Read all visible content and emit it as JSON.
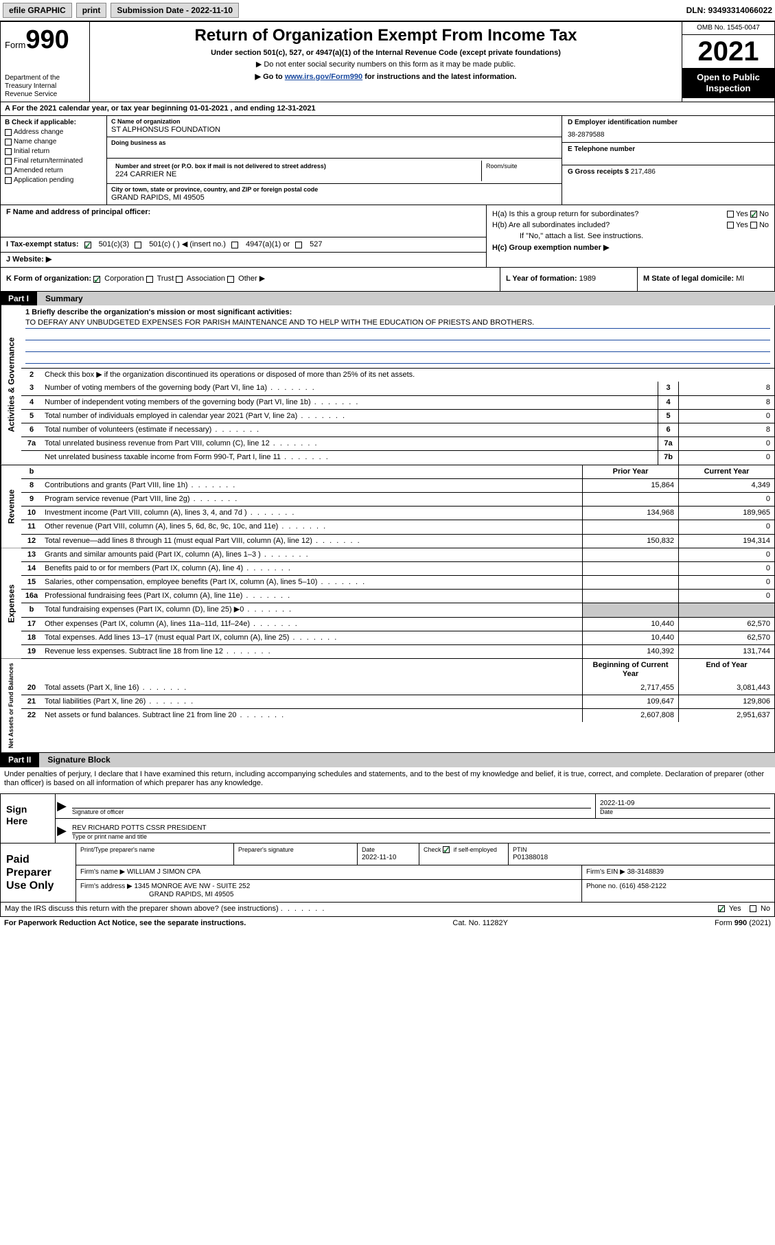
{
  "topbar": {
    "efile": "efile GRAPHIC",
    "print": "print",
    "sub_date_label": "Submission Date - 2022-11-10",
    "dln": "DLN: 93493314066022"
  },
  "header": {
    "form_word": "Form",
    "form_num": "990",
    "dept": "Department of the Treasury Internal Revenue Service",
    "title": "Return of Organization Exempt From Income Tax",
    "sub": "Under section 501(c), 527, or 4947(a)(1) of the Internal Revenue Code (except private foundations)",
    "note1": "▶ Do not enter social security numbers on this form as it may be made public.",
    "note2_pre": "▶ Go to ",
    "note2_link": "www.irs.gov/Form990",
    "note2_post": " for instructions and the latest information.",
    "omb": "OMB No. 1545-0047",
    "year": "2021",
    "open_pub": "Open to Public Inspection"
  },
  "row_a": "For the 2021 calendar year, or tax year beginning 01-01-2021   , and ending 12-31-2021",
  "b": {
    "title": "B Check if applicable:",
    "items": [
      "Address change",
      "Name change",
      "Initial return",
      "Final return/terminated",
      "Amended return",
      "Application pending"
    ]
  },
  "c": {
    "name_label": "C Name of organization",
    "name": "ST ALPHONSUS FOUNDATION",
    "dba_label": "Doing business as",
    "street_label": "Number and street (or P.O. box if mail is not delivered to street address)",
    "street": "224 CARRIER NE",
    "room_label": "Room/suite",
    "city_label": "City or town, state or province, country, and ZIP or foreign postal code",
    "city": "GRAND RAPIDS, MI  49505"
  },
  "d": {
    "label": "D Employer identification number",
    "val": "38-2879588"
  },
  "e": {
    "label": "E Telephone number",
    "val": ""
  },
  "g": {
    "label": "G Gross receipts $",
    "val": "217,486"
  },
  "f": {
    "label": "F  Name and address of principal officer:"
  },
  "h": {
    "a": "H(a)  Is this a group return for subordinates?",
    "b": "H(b)  Are all subordinates included?",
    "b_note": "If \"No,\" attach a list. See instructions.",
    "c": "H(c)  Group exemption number ▶",
    "yes": "Yes",
    "no": "No"
  },
  "i": {
    "label": "I   Tax-exempt status:",
    "o1": "501(c)(3)",
    "o2": "501(c) (  ) ◀ (insert no.)",
    "o3": "4947(a)(1) or",
    "o4": "527"
  },
  "j": {
    "label": "J   Website: ▶"
  },
  "k": {
    "label": "K Form of organization:",
    "o1": "Corporation",
    "o2": "Trust",
    "o3": "Association",
    "o4": "Other ▶"
  },
  "l": {
    "label": "L Year of formation:",
    "val": "1989"
  },
  "m": {
    "label": "M State of legal domicile:",
    "val": "MI"
  },
  "part1": {
    "tab": "Part I",
    "title": "Summary"
  },
  "summary": {
    "l1_label": "1  Briefly describe the organization's mission or most significant activities:",
    "l1_text": "TO DEFRAY ANY UNBUDGETED EXPENSES FOR PARISH MAINTENANCE AND TO HELP WITH THE EDUCATION OF PRIESTS AND BROTHERS.",
    "l2": "Check this box ▶        if the organization discontinued its operations or disposed of more than 25% of its net assets.",
    "rows_single": [
      {
        "n": "3",
        "t": "Number of voting members of the governing body (Part VI, line 1a)",
        "c": "3",
        "v": "8"
      },
      {
        "n": "4",
        "t": "Number of independent voting members of the governing body (Part VI, line 1b)",
        "c": "4",
        "v": "8"
      },
      {
        "n": "5",
        "t": "Total number of individuals employed in calendar year 2021 (Part V, line 2a)",
        "c": "5",
        "v": "0"
      },
      {
        "n": "6",
        "t": "Total number of volunteers (estimate if necessary)",
        "c": "6",
        "v": "8"
      },
      {
        "n": "7a",
        "t": "Total unrelated business revenue from Part VIII, column (C), line 12",
        "c": "7a",
        "v": "0"
      },
      {
        "n": "",
        "t": "Net unrelated business taxable income from Form 990-T, Part I, line 11",
        "c": "7b",
        "v": "0"
      }
    ],
    "hdr_prior": "Prior Year",
    "hdr_current": "Current Year",
    "revenue": [
      {
        "n": "8",
        "t": "Contributions and grants (Part VIII, line 1h)",
        "p": "15,864",
        "c": "4,349"
      },
      {
        "n": "9",
        "t": "Program service revenue (Part VIII, line 2g)",
        "p": "",
        "c": "0"
      },
      {
        "n": "10",
        "t": "Investment income (Part VIII, column (A), lines 3, 4, and 7d )",
        "p": "134,968",
        "c": "189,965"
      },
      {
        "n": "11",
        "t": "Other revenue (Part VIII, column (A), lines 5, 6d, 8c, 9c, 10c, and 11e)",
        "p": "",
        "c": "0"
      },
      {
        "n": "12",
        "t": "Total revenue—add lines 8 through 11 (must equal Part VIII, column (A), line 12)",
        "p": "150,832",
        "c": "194,314"
      }
    ],
    "expenses": [
      {
        "n": "13",
        "t": "Grants and similar amounts paid (Part IX, column (A), lines 1–3 )",
        "p": "",
        "c": "0"
      },
      {
        "n": "14",
        "t": "Benefits paid to or for members (Part IX, column (A), line 4)",
        "p": "",
        "c": "0"
      },
      {
        "n": "15",
        "t": "Salaries, other compensation, employee benefits (Part IX, column (A), lines 5–10)",
        "p": "",
        "c": "0"
      },
      {
        "n": "16a",
        "t": "Professional fundraising fees (Part IX, column (A), line 11e)",
        "p": "",
        "c": "0"
      },
      {
        "n": "b",
        "t": "Total fundraising expenses (Part IX, column (D), line 25) ▶0",
        "p": "SHADE",
        "c": "SHADE"
      },
      {
        "n": "17",
        "t": "Other expenses (Part IX, column (A), lines 11a–11d, 11f–24e)",
        "p": "10,440",
        "c": "62,570"
      },
      {
        "n": "18",
        "t": "Total expenses. Add lines 13–17 (must equal Part IX, column (A), line 25)",
        "p": "10,440",
        "c": "62,570"
      },
      {
        "n": "19",
        "t": "Revenue less expenses. Subtract line 18 from line 12",
        "p": "140,392",
        "c": "131,744"
      }
    ],
    "hdr_boy": "Beginning of Current Year",
    "hdr_eoy": "End of Year",
    "netassets": [
      {
        "n": "20",
        "t": "Total assets (Part X, line 16)",
        "p": "2,717,455",
        "c": "3,081,443"
      },
      {
        "n": "21",
        "t": "Total liabilities (Part X, line 26)",
        "p": "109,647",
        "c": "129,806"
      },
      {
        "n": "22",
        "t": "Net assets or fund balances. Subtract line 21 from line 20",
        "p": "2,607,808",
        "c": "2,951,637"
      }
    ]
  },
  "part2": {
    "tab": "Part II",
    "title": "Signature Block"
  },
  "sig": {
    "decl": "Under penalties of perjury, I declare that I have examined this return, including accompanying schedules and statements, and to the best of my knowledge and belief, it is true, correct, and complete. Declaration of preparer (other than officer) is based on all information of which preparer has any knowledge.",
    "sign_here": "Sign Here",
    "sig_officer": "Signature of officer",
    "date": "Date",
    "date_val": "2022-11-09",
    "name_title": "REV RICHARD POTTS CSSR  PRESIDENT",
    "name_label": "Type or print name and title"
  },
  "paid": {
    "title": "Paid Preparer Use Only",
    "h_name": "Print/Type preparer's name",
    "h_sig": "Preparer's signature",
    "h_date": "Date",
    "date_val": "2022-11-10",
    "h_check": "Check          if self-employed",
    "h_ptin": "PTIN",
    "ptin_val": "P01388018",
    "firm_name_label": "Firm's name    ▶",
    "firm_name": "WILLIAM J SIMON CPA",
    "firm_ein_label": "Firm's EIN ▶",
    "firm_ein": "38-3148839",
    "firm_addr_label": "Firm's address ▶",
    "firm_addr1": "1345 MONROE AVE NW - SUITE 252",
    "firm_addr2": "GRAND RAPIDS, MI  49505",
    "phone_label": "Phone no.",
    "phone": "(616) 458-2122"
  },
  "footer": {
    "may_irs": "May the IRS discuss this return with the preparer shown above? (see instructions)",
    "yes": "Yes",
    "no": "No",
    "pra": "For Paperwork Reduction Act Notice, see the separate instructions.",
    "cat": "Cat. No. 11282Y",
    "form": "Form 990 (2021)"
  },
  "vlabels": {
    "ag": "Activities & Governance",
    "rev": "Revenue",
    "exp": "Expenses",
    "na": "Net Assets or Fund Balances"
  },
  "colors": {
    "link": "#1a4aa0",
    "check": "#1d7a3a",
    "shade": "#c8c8c8"
  }
}
